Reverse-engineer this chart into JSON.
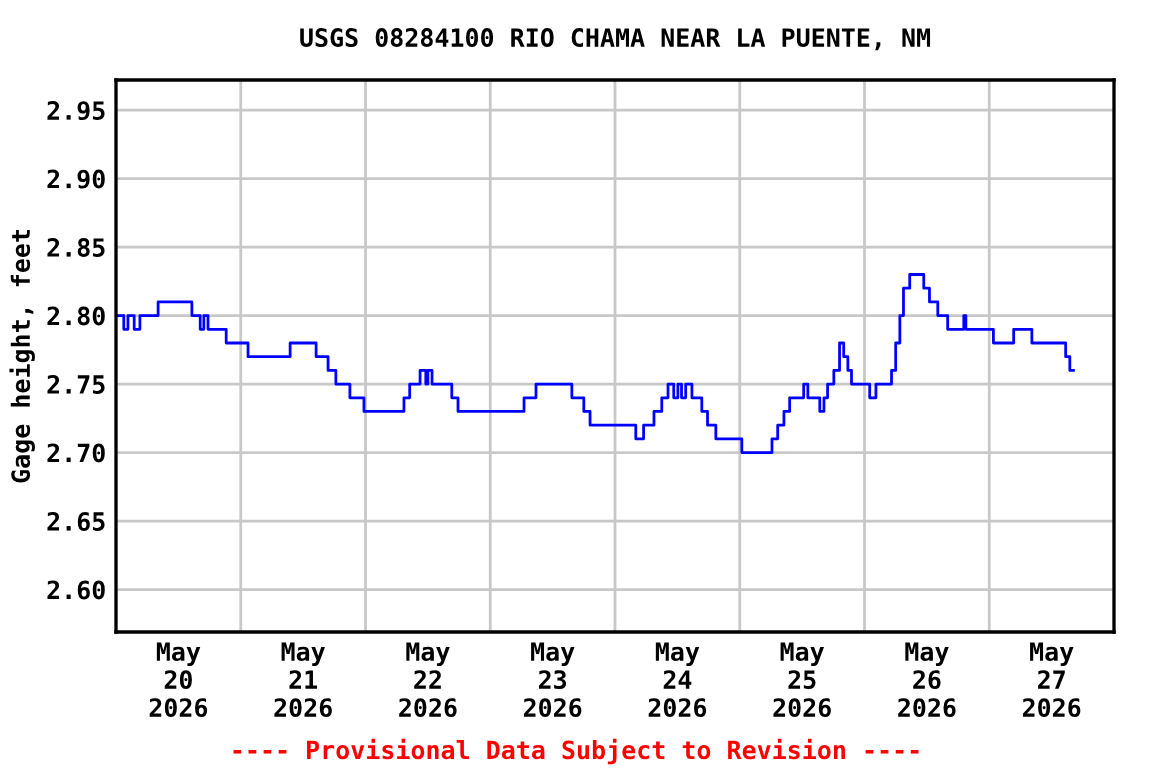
{
  "chart_data": {
    "type": "step",
    "title": "USGS 08284100 RIO CHAMA NEAR LA PUENTE, NM",
    "ylabel": "Gage height, feet",
    "annotations": [
      "---- Provisional Data Subject to Revision ----"
    ],
    "x": [
      "2026-05-20T00:00",
      "2026-05-20T01:30",
      "2026-05-20T02:18",
      "2026-05-20T03:30",
      "2026-05-20T04:36",
      "2026-05-20T08:06",
      "2026-05-20T14:36",
      "2026-05-20T16:12",
      "2026-05-20T16:54",
      "2026-05-20T17:42",
      "2026-05-20T21:12",
      "2026-05-21T01:24",
      "2026-05-21T09:30",
      "2026-05-21T14:30",
      "2026-05-21T16:48",
      "2026-05-21T18:18",
      "2026-05-21T21:00",
      "2026-05-21T23:42",
      "2026-05-22T07:24",
      "2026-05-22T08:30",
      "2026-05-22T10:30",
      "2026-05-22T11:36",
      "2026-05-22T12:00",
      "2026-05-22T12:48",
      "2026-05-22T16:36",
      "2026-05-22T17:48",
      "2026-05-23T06:30",
      "2026-05-23T08:48",
      "2026-05-23T15:42",
      "2026-05-23T18:00",
      "2026-05-23T19:12",
      "2026-05-24T04:00",
      "2026-05-24T05:30",
      "2026-05-24T07:30",
      "2026-05-24T09:00",
      "2026-05-24T10:12",
      "2026-05-24T11:18",
      "2026-05-24T12:06",
      "2026-05-24T12:48",
      "2026-05-24T13:36",
      "2026-05-24T14:48",
      "2026-05-24T16:42",
      "2026-05-24T17:48",
      "2026-05-24T19:24",
      "2026-05-25T00:24",
      "2026-05-25T06:12",
      "2026-05-25T07:18",
      "2026-05-25T08:30",
      "2026-05-25T09:36",
      "2026-05-25T12:18",
      "2026-05-25T13:06",
      "2026-05-25T15:24",
      "2026-05-25T16:12",
      "2026-05-25T16:54",
      "2026-05-25T18:06",
      "2026-05-25T19:12",
      "2026-05-25T20:00",
      "2026-05-25T20:48",
      "2026-05-25T21:30",
      "2026-05-26T01:00",
      "2026-05-26T02:12",
      "2026-05-26T05:12",
      "2026-05-26T06:00",
      "2026-05-26T06:48",
      "2026-05-26T07:30",
      "2026-05-26T08:42",
      "2026-05-26T11:24",
      "2026-05-26T12:30",
      "2026-05-26T14:06",
      "2026-05-26T16:00",
      "2026-05-26T19:06",
      "2026-05-26T19:30",
      "2026-05-27T00:48",
      "2026-05-27T04:42",
      "2026-05-27T08:12",
      "2026-05-27T14:42",
      "2026-05-27T15:30",
      "2026-05-27T16:12"
    ],
    "series": [
      {
        "color": "#0000ff",
        "values": [
          2.8,
          2.79,
          2.8,
          2.79,
          2.8,
          2.81,
          2.8,
          2.79,
          2.8,
          2.79,
          2.78,
          2.77,
          2.78,
          2.77,
          2.76,
          2.75,
          2.74,
          2.73,
          2.74,
          2.75,
          2.76,
          2.75,
          2.76,
          2.75,
          2.74,
          2.73,
          2.74,
          2.75,
          2.74,
          2.73,
          2.72,
          2.71,
          2.72,
          2.73,
          2.74,
          2.75,
          2.74,
          2.75,
          2.74,
          2.75,
          2.74,
          2.73,
          2.72,
          2.71,
          2.7,
          2.71,
          2.72,
          2.73,
          2.74,
          2.75,
          2.74,
          2.73,
          2.74,
          2.75,
          2.76,
          2.78,
          2.77,
          2.76,
          2.75,
          2.74,
          2.75,
          2.76,
          2.78,
          2.8,
          2.82,
          2.83,
          2.82,
          2.81,
          2.8,
          2.79,
          2.8,
          2.79,
          2.78,
          2.79,
          2.78,
          2.77,
          2.76,
          2.76
        ]
      }
    ],
    "xlim": [
      "2026-05-20T00:00",
      "2026-05-28T00:00"
    ],
    "xticks": [
      {
        "value": "2026-05-20T12:00",
        "label": "May\n20\n2026"
      },
      {
        "value": "2026-05-21T00:00",
        "label": null
      },
      {
        "value": "2026-05-21T12:00",
        "label": "May\n21\n2026"
      },
      {
        "value": "2026-05-22T00:00",
        "label": null
      },
      {
        "value": "2026-05-22T12:00",
        "label": "May\n22\n2026"
      },
      {
        "value": "2026-05-23T00:00",
        "label": null
      },
      {
        "value": "2026-05-23T12:00",
        "label": "May\n23\n2026"
      },
      {
        "value": "2026-05-24T00:00",
        "label": null
      },
      {
        "value": "2026-05-24T12:00",
        "label": "May\n24\n2026"
      },
      {
        "value": "2026-05-25T00:00",
        "label": null
      },
      {
        "value": "2026-05-25T12:00",
        "label": "May\n25\n2026"
      },
      {
        "value": "2026-05-26T00:00",
        "label": null
      },
      {
        "value": "2026-05-26T12:00",
        "label": "May\n26\n2026"
      },
      {
        "value": "2026-05-27T00:00",
        "label": null
      },
      {
        "value": "2026-05-27T12:00",
        "label": "May\n27\n2026"
      }
    ],
    "ylim": [
      2.569,
      2.972
    ],
    "yticks": [
      {
        "value": 2.6,
        "label": "2.60"
      },
      {
        "value": 2.65,
        "label": "2.65"
      },
      {
        "value": 2.7,
        "label": "2.70"
      },
      {
        "value": 2.75,
        "label": "2.75"
      },
      {
        "value": 2.8,
        "label": "2.80"
      },
      {
        "value": 2.85,
        "label": "2.85"
      },
      {
        "value": 2.9,
        "label": "2.90"
      },
      {
        "value": 2.95,
        "label": "2.95"
      }
    ],
    "grid": true
  }
}
